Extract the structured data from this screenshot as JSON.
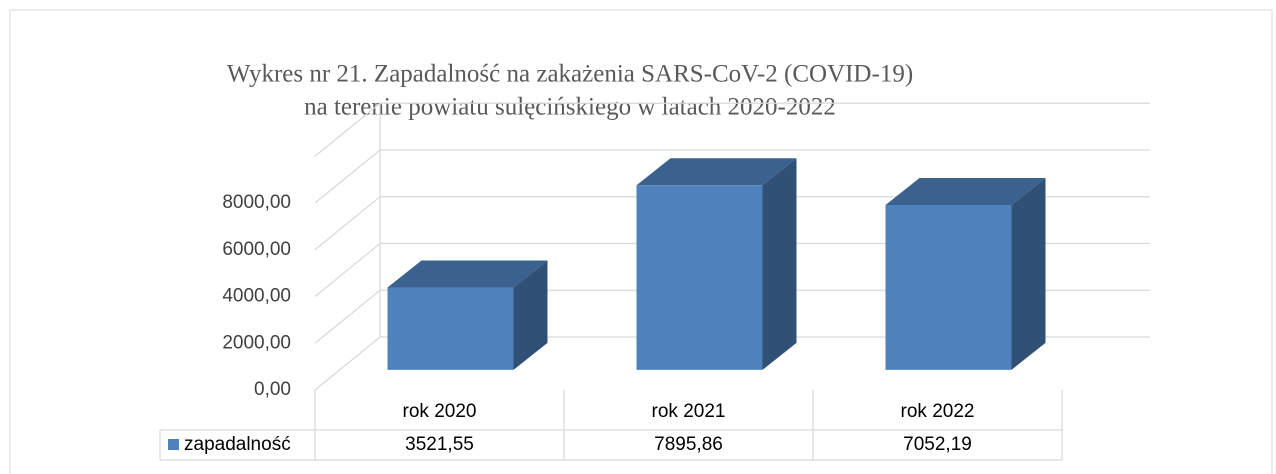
{
  "chart_data": {
    "type": "bar3d",
    "title": [
      "Wykres nr 21. Zapadalność na zakażenia SARS-CoV-2 (COVID-19)",
      "na terenie powiatu sulęcińskiego w latach 2020-2022"
    ],
    "categories": [
      "rok 2020",
      "rok 2021",
      "rok 2022"
    ],
    "series": [
      {
        "name": "zapadalność",
        "color": "#4f81bd",
        "values": [
          3521.55,
          7895.86,
          7052.19
        ],
        "value_labels": [
          "3521,55",
          "7895,86",
          "7052,19"
        ]
      }
    ],
    "ylim": [
      0,
      10000
    ],
    "yticks": [
      {
        "value": 0,
        "label": "0,00"
      },
      {
        "value": 2000,
        "label": "2000,00"
      },
      {
        "value": 4000,
        "label": "4000,00"
      },
      {
        "value": 6000,
        "label": "6000,00"
      },
      {
        "value": 8000,
        "label": "8000,00"
      }
    ],
    "grid": true,
    "data_table": true
  }
}
